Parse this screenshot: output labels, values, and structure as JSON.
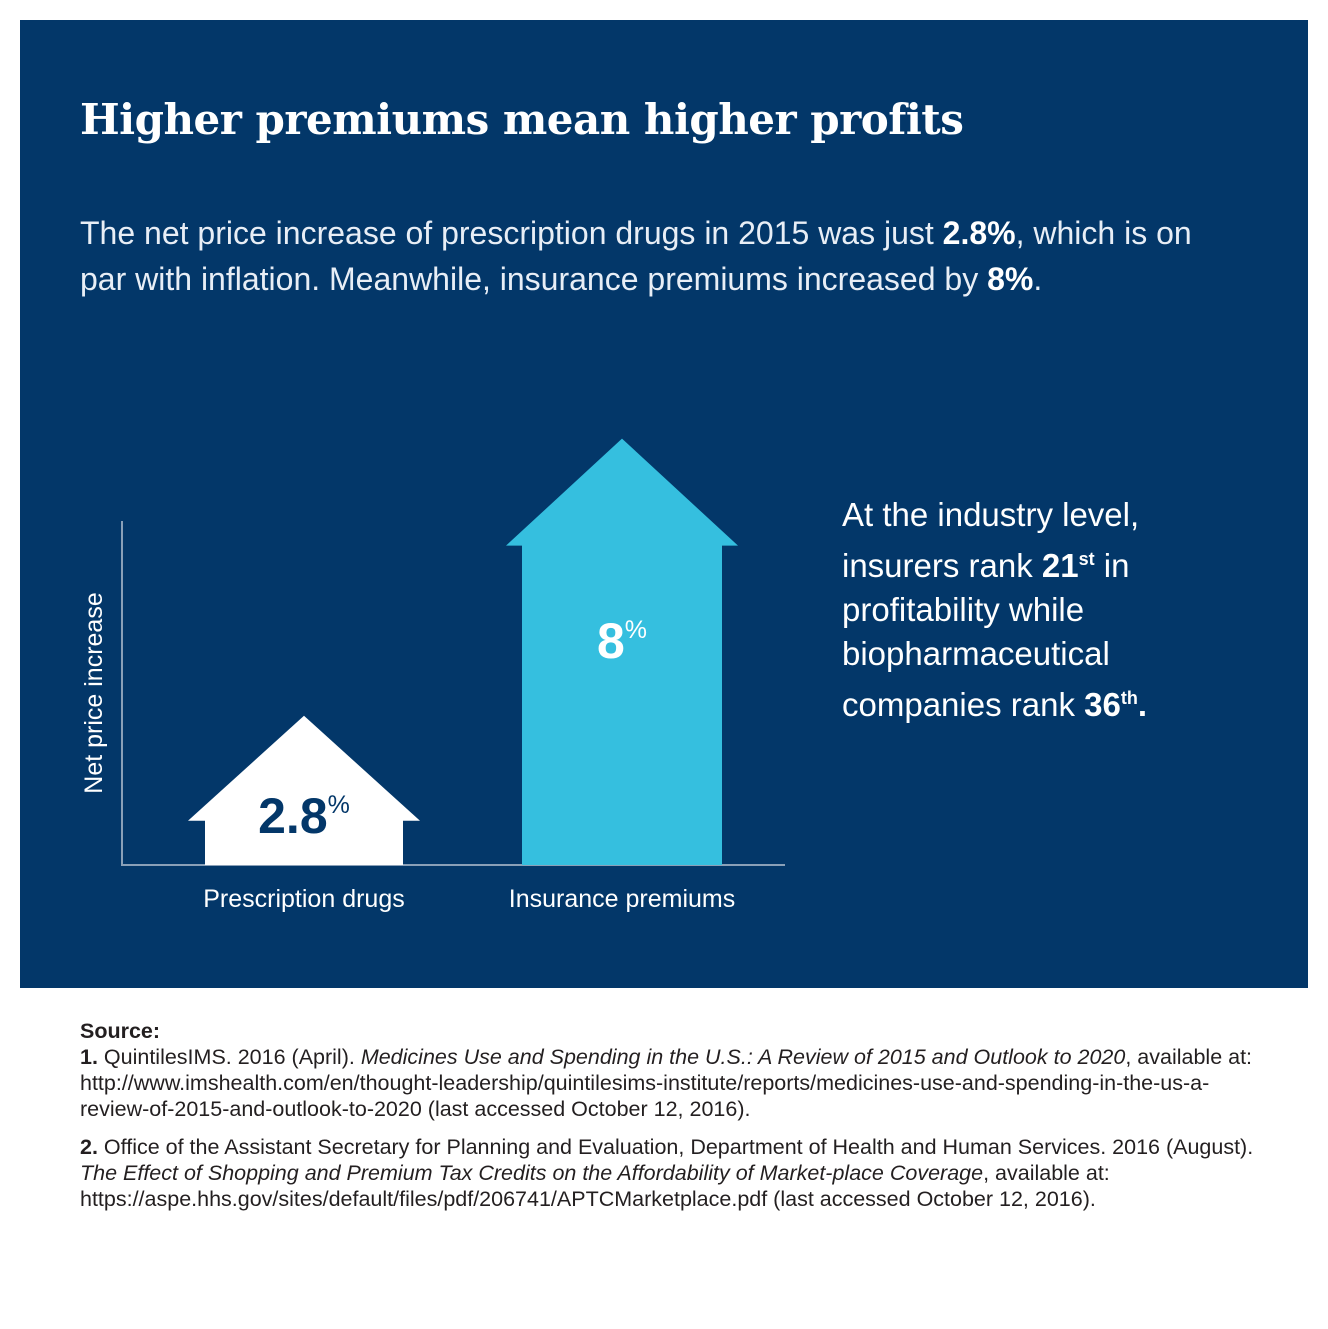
{
  "title": "Higher premiums mean higher profits",
  "intro": {
    "part1": "The net price increase of prescription drugs in 2015 was just ",
    "drugs_value": "2.8%",
    "part2": ", which is on par with inflation. Meanwhile, insurance premiums increased by ",
    "premiums_value": "8%",
    "part3": "."
  },
  "side_note": {
    "part1": "At the industry level, insurers rank ",
    "insurers_rank": "21",
    "insurers_rank_suffix": "st",
    "part2": " in profitability while biopharmaceutical companies rank ",
    "pharma_rank": "36",
    "pharma_rank_suffix": "th",
    "part3": "."
  },
  "colors": {
    "background": "#033769",
    "drugs_arrow": "#ffffff",
    "premiums_arrow": "#35bfdf",
    "drugs_value_text": "#033769",
    "premiums_value_text": "#ffffff"
  },
  "chart_data": {
    "type": "bar",
    "ylabel": "Net price increase",
    "categories": [
      "Prescription drugs",
      "Insurance premiums"
    ],
    "values": [
      2.8,
      8
    ],
    "value_labels": [
      {
        "number": "2.8",
        "unit": "%"
      },
      {
        "number": "8",
        "unit": "%"
      }
    ],
    "ylim": [
      0,
      8.5
    ],
    "bar_style": "up-arrow",
    "grid": false
  },
  "sources": {
    "heading": "Source:",
    "ref1": {
      "num": "1.",
      "text_a": " QuintilesIMS. 2016 (April). ",
      "title": "Medicines Use and Spending in the U.S.: A Review of 2015 and Outlook to 2020",
      "text_b": ", available at: http://www.imshealth.com/en/thought-leadership/quintilesims-institute/reports/medicines-use-and-spending-in-the-us-a-review-of-2015-and-outlook-to-2020 (last accessed October 12, 2016)."
    },
    "ref2": {
      "num": "2.",
      "text_a": " Office of the Assistant Secretary for Planning and Evaluation, Department of Health and Human Services. 2016 (August). ",
      "title": "The Effect of Shopping and Premium Tax Credits on the Affordability of Market-place Coverage",
      "text_b": ", available at: https://aspe.hhs.gov/sites/default/files/pdf/206741/APTCMarketplace.pdf (last accessed October 12, 2016)."
    }
  }
}
